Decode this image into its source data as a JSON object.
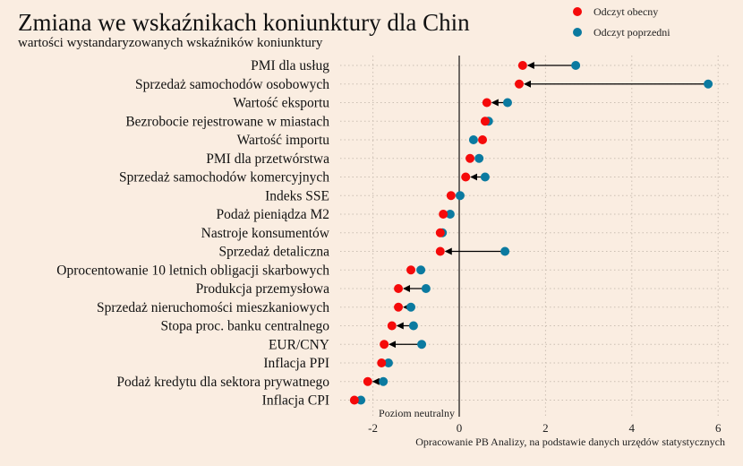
{
  "chart_data": {
    "type": "dot-arrow",
    "title": "Zmiana we wskaźnikach koniunktury dla Chin",
    "subtitle": "wartości wystandaryzowanych wskaźników koniunktury",
    "legend": [
      {
        "name": "Odczyt obecny",
        "color": "#f50a0a"
      },
      {
        "name": "Odczyt poprzedni",
        "color": "#0b7aa0"
      }
    ],
    "legend_position": "top-right",
    "xlim": [
      -2.8,
      6.3
    ],
    "xticks": [
      -2,
      0,
      2,
      4,
      6
    ],
    "zero_label": "Poziom neutralny",
    "source": "Opracowanie PB Analizy, na podstawie danych urzędów statystycznych",
    "categories": [
      "PMI dla usług",
      "Sprzedaż samochodów osobowych",
      "Wartość eksportu",
      "Bezrobocie rejestrowane w miastach",
      "Wartość importu",
      "PMI dla przetwórstwa",
      "Sprzedaż samochodów komercyjnych",
      "Indeks SSE",
      "Podaż pieniądza M2",
      "Nastroje konsumentów",
      "Sprzedaż detaliczna",
      "Oprocentowanie 10 letnich obligacji skarbowych",
      "Produkcja przemysłowa",
      "Sprzedaż nieruchomości mieszkaniowych",
      "Stopa proc. banku centralnego",
      "EUR/CNY",
      "Inflacja PPI",
      "Podaż kredytu dla sektora prywatnego",
      "Inflacja CPI"
    ],
    "series": [
      {
        "name": "Odczyt obecny",
        "values": [
          1.47,
          1.39,
          0.64,
          0.6,
          0.54,
          0.25,
          0.15,
          -0.19,
          -0.37,
          -0.44,
          -0.44,
          -1.12,
          -1.41,
          -1.41,
          -1.56,
          -1.74,
          -1.8,
          -2.12,
          -2.43
        ]
      },
      {
        "name": "Odczyt poprzedni",
        "values": [
          2.7,
          5.77,
          1.12,
          0.68,
          0.33,
          0.46,
          0.6,
          0.02,
          -0.21,
          -0.39,
          1.06,
          -0.89,
          -0.77,
          -1.12,
          -1.06,
          -0.87,
          -1.64,
          -1.76,
          -2.28
        ]
      }
    ]
  }
}
